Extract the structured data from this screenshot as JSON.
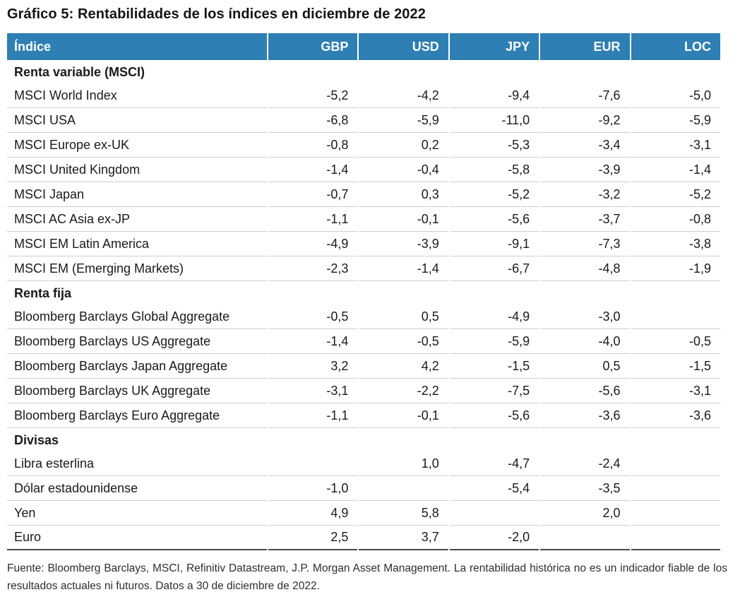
{
  "title": "Gráfico 5: Rentabilidades de los índices en diciembre de 2022",
  "table": {
    "columns": [
      "Índice",
      "GBP",
      "USD",
      "JPY",
      "EUR",
      "LOC"
    ],
    "sections": [
      {
        "label": "Renta variable (MSCI)",
        "rows": [
          {
            "name": "MSCI World Index",
            "values": [
              "-5,2",
              "-4,2",
              "-9,4",
              "-7,6",
              "-5,0"
            ]
          },
          {
            "name": "MSCI USA",
            "values": [
              "-6,8",
              "-5,9",
              "-11,0",
              "-9,2",
              "-5,9"
            ]
          },
          {
            "name": "MSCI Europe ex-UK",
            "values": [
              "-0,8",
              "0,2",
              "-5,3",
              "-3,4",
              "-3,1"
            ]
          },
          {
            "name": "MSCI United Kingdom",
            "values": [
              "-1,4",
              "-0,4",
              "-5,8",
              "-3,9",
              "-1,4"
            ]
          },
          {
            "name": "MSCI Japan",
            "values": [
              "-0,7",
              "0,3",
              "-5,2",
              "-3,2",
              "-5,2"
            ]
          },
          {
            "name": "MSCI AC Asia ex-JP",
            "values": [
              "-1,1",
              "-0,1",
              "-5,6",
              "-3,7",
              "-0,8"
            ]
          },
          {
            "name": "MSCI EM Latin America",
            "values": [
              "-4,9",
              "-3,9",
              "-9,1",
              "-7,3",
              "-3,8"
            ]
          },
          {
            "name": "MSCI EM (Emerging Markets)",
            "values": [
              "-2,3",
              "-1,4",
              "-6,7",
              "-4,8",
              "-1,9"
            ]
          }
        ]
      },
      {
        "label": "Renta fija",
        "rows": [
          {
            "name": "Bloomberg Barclays Global Aggregate",
            "values": [
              "-0,5",
              "0,5",
              "-4,9",
              "-3,0",
              ""
            ]
          },
          {
            "name": "Bloomberg Barclays US Aggregate",
            "values": [
              "-1,4",
              "-0,5",
              "-5,9",
              "-4,0",
              "-0,5"
            ]
          },
          {
            "name": "Bloomberg Barclays Japan Aggregate",
            "values": [
              "3,2",
              "4,2",
              "-1,5",
              "0,5",
              "-1,5"
            ]
          },
          {
            "name": "Bloomberg Barclays UK Aggregate",
            "values": [
              "-3,1",
              "-2,2",
              "-7,5",
              "-5,6",
              "-3,1"
            ]
          },
          {
            "name": "Bloomberg Barclays Euro Aggregate",
            "values": [
              "-1,1",
              "-0,1",
              "-5,6",
              "-3,6",
              "-3,6"
            ]
          }
        ]
      },
      {
        "label": "Divisas",
        "rows": [
          {
            "name": "Libra esterlina",
            "values": [
              "",
              "1,0",
              "-4,7",
              "-2,4",
              ""
            ]
          },
          {
            "name": "Dólar estadounidense",
            "values": [
              "-1,0",
              "",
              "-5,4",
              "-3,5",
              ""
            ]
          },
          {
            "name": "Yen",
            "values": [
              "4,9",
              "5,8",
              "",
              "2,0",
              ""
            ]
          },
          {
            "name": "Euro",
            "values": [
              "2,5",
              "3,7",
              "-2,0",
              "",
              ""
            ]
          }
        ]
      }
    ]
  },
  "footnote": {
    "text": "Fuente: Bloomberg Barclays, MSCI, Refinitiv Datastream, J.P. Morgan Asset Management. La rentabilidad histórica no es un indicador fiable de los resultados actuales ni futuros. Datos a 30 de diciembre de 2022."
  },
  "colors": {
    "header_bg": "#2E7FB3",
    "header_text": "#FFFFFF",
    "row_border": "#CFCFCF",
    "table_bottom_border": "#4A4A4A",
    "body_text": "#1A1A1A"
  }
}
